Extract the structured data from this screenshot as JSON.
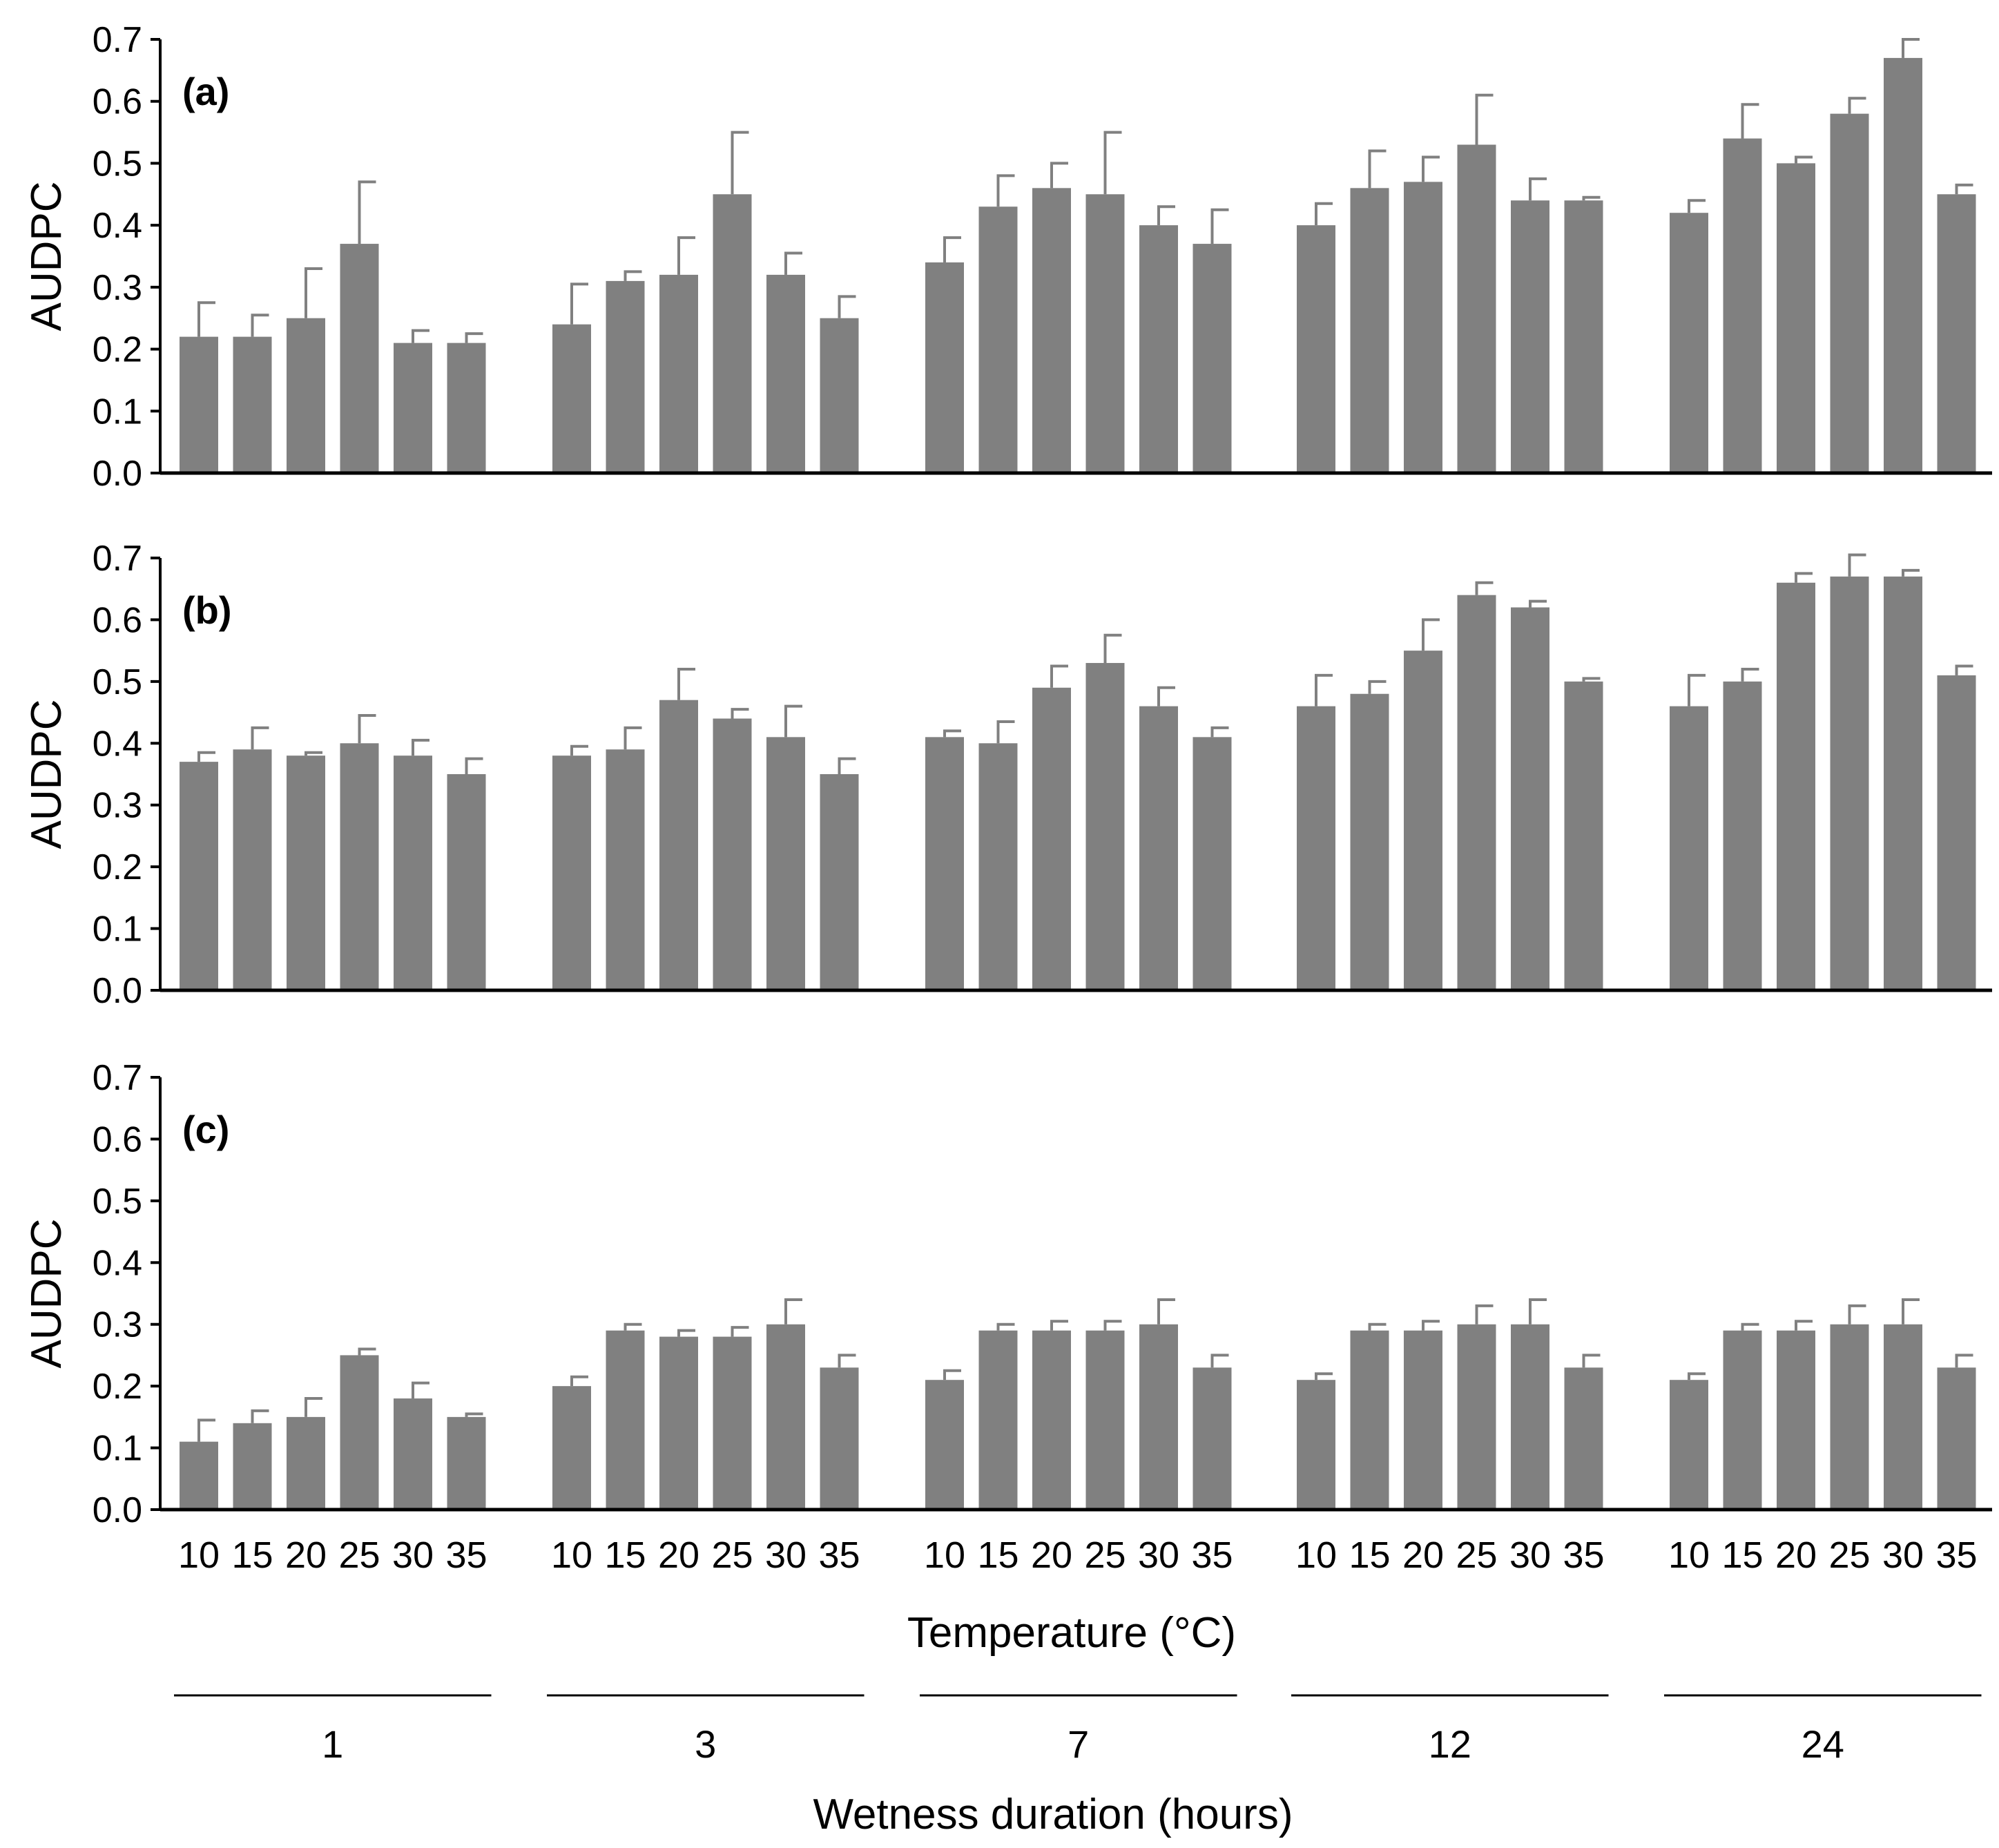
{
  "figure": {
    "xlabel": "Temperature (°C)",
    "group_label": "Wetness duration (hours)",
    "bar_color": "#808080",
    "axis_color": "#000000"
  },
  "chart_data": [
    {
      "type": "bar",
      "panel": "(a)",
      "ylabel": "AUDPC",
      "ylim": [
        0,
        0.7
      ],
      "yticks": [
        "0.0",
        "0.1",
        "0.2",
        "0.3",
        "0.4",
        "0.5",
        "0.6",
        "0.7"
      ],
      "groups": [
        "1",
        "3",
        "7",
        "12",
        "24"
      ],
      "categories": [
        "10",
        "15",
        "20",
        "25",
        "30",
        "35"
      ],
      "values": [
        [
          0.22,
          0.22,
          0.25,
          0.37,
          0.21,
          0.21
        ],
        [
          0.24,
          0.31,
          0.32,
          0.45,
          0.32,
          0.25
        ],
        [
          0.34,
          0.43,
          0.46,
          0.45,
          0.4,
          0.37
        ],
        [
          0.4,
          0.46,
          0.47,
          0.53,
          0.44,
          0.44
        ],
        [
          0.42,
          0.54,
          0.5,
          0.58,
          0.67,
          0.45
        ]
      ],
      "errors": [
        [
          0.055,
          0.035,
          0.08,
          0.1,
          0.02,
          0.015
        ],
        [
          0.065,
          0.015,
          0.06,
          0.1,
          0.035,
          0.035
        ],
        [
          0.04,
          0.05,
          0.04,
          0.1,
          0.03,
          0.055
        ],
        [
          0.035,
          0.06,
          0.04,
          0.08,
          0.035,
          0.005
        ],
        [
          0.02,
          0.055,
          0.01,
          0.025,
          0.03,
          0.015
        ]
      ]
    },
    {
      "type": "bar",
      "panel": "(b)",
      "ylabel": "AUDPC",
      "ylim": [
        0,
        0.7
      ],
      "yticks": [
        "0.0",
        "0.1",
        "0.2",
        "0.3",
        "0.4",
        "0.5",
        "0.6",
        "0.7"
      ],
      "groups": [
        "1",
        "3",
        "7",
        "12",
        "24"
      ],
      "categories": [
        "10",
        "15",
        "20",
        "25",
        "30",
        "35"
      ],
      "values": [
        [
          0.37,
          0.39,
          0.38,
          0.4,
          0.38,
          0.35
        ],
        [
          0.38,
          0.39,
          0.47,
          0.44,
          0.41,
          0.35
        ],
        [
          0.41,
          0.4,
          0.49,
          0.53,
          0.46,
          0.41
        ],
        [
          0.46,
          0.48,
          0.55,
          0.64,
          0.62,
          0.5
        ],
        [
          0.46,
          0.5,
          0.66,
          0.67,
          0.67,
          0.51
        ]
      ],
      "errors": [
        [
          0.015,
          0.035,
          0.005,
          0.045,
          0.025,
          0.025
        ],
        [
          0.015,
          0.035,
          0.05,
          0.015,
          0.05,
          0.025
        ],
        [
          0.01,
          0.035,
          0.035,
          0.045,
          0.03,
          0.015
        ],
        [
          0.05,
          0.02,
          0.05,
          0.02,
          0.01,
          0.005
        ],
        [
          0.05,
          0.02,
          0.015,
          0.035,
          0.01,
          0.015
        ]
      ]
    },
    {
      "type": "bar",
      "panel": "(c)",
      "ylabel": "AUDPC",
      "ylim": [
        0,
        0.7
      ],
      "yticks": [
        "0.0",
        "0.1",
        "0.2",
        "0.3",
        "0.4",
        "0.5",
        "0.6",
        "0.7"
      ],
      "groups": [
        "1",
        "3",
        "7",
        "12",
        "24"
      ],
      "categories": [
        "10",
        "15",
        "20",
        "25",
        "30",
        "35"
      ],
      "values": [
        [
          0.11,
          0.14,
          0.15,
          0.25,
          0.18,
          0.15
        ],
        [
          0.2,
          0.29,
          0.28,
          0.28,
          0.3,
          0.23
        ],
        [
          0.21,
          0.29,
          0.29,
          0.29,
          0.3,
          0.23
        ],
        [
          0.21,
          0.29,
          0.29,
          0.3,
          0.3,
          0.23
        ],
        [
          0.21,
          0.29,
          0.29,
          0.3,
          0.3,
          0.23
        ]
      ],
      "errors": [
        [
          0.035,
          0.02,
          0.03,
          0.01,
          0.025,
          0.005
        ],
        [
          0.015,
          0.01,
          0.01,
          0.015,
          0.04,
          0.02
        ],
        [
          0.015,
          0.01,
          0.015,
          0.015,
          0.04,
          0.02
        ],
        [
          0.01,
          0.01,
          0.015,
          0.03,
          0.04,
          0.02
        ],
        [
          0.01,
          0.01,
          0.015,
          0.03,
          0.04,
          0.02
        ]
      ]
    }
  ]
}
